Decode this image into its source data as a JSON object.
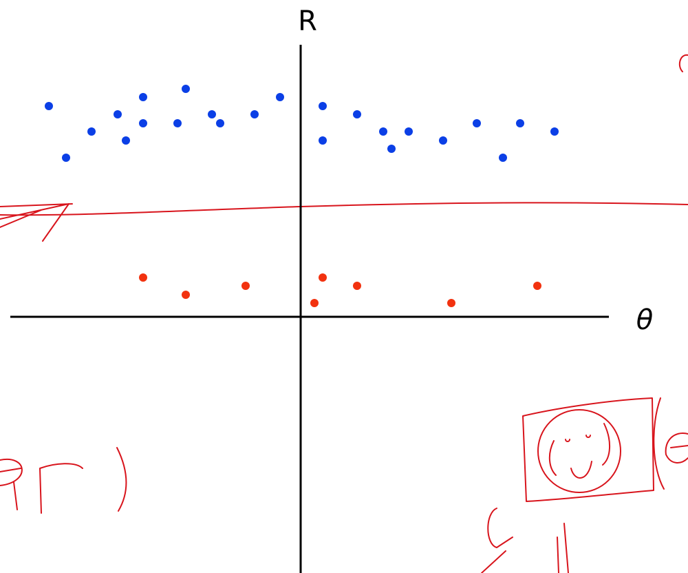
{
  "chart_data": {
    "type": "scatter",
    "x_label": "θ",
    "y_label": "R",
    "xlim": [
      -42.2,
      44.8
    ],
    "ylim": [
      -37.2,
      39.5
    ],
    "series": [
      {
        "color": "#0b3fe6",
        "x": [
          -36.6,
          -34.1,
          -30.4,
          -26.6,
          -25.4,
          -22.9,
          -22.9,
          -16.7,
          -17.9,
          -12.9,
          -11.7,
          -6.7,
          -3.0,
          3.2,
          3.2,
          8.2,
          12.0,
          13.2,
          15.7,
          20.7,
          25.6,
          29.4,
          31.9,
          36.9
        ],
        "values": [
          30.6,
          23.1,
          26.9,
          29.4,
          25.6,
          31.9,
          28.1,
          33.1,
          28.1,
          29.4,
          28.1,
          29.4,
          31.9,
          30.6,
          25.6,
          29.4,
          26.9,
          24.4,
          26.9,
          25.6,
          28.1,
          23.1,
          28.1,
          26.9
        ]
      },
      {
        "color": "#f2320f",
        "x": [
          -22.9,
          -16.7,
          -8.0,
          3.2,
          8.2,
          2.0,
          21.9,
          34.4
        ],
        "values": [
          5.7,
          3.2,
          4.5,
          5.7,
          4.5,
          2.0,
          2.0,
          4.5
        ]
      }
    ]
  }
}
